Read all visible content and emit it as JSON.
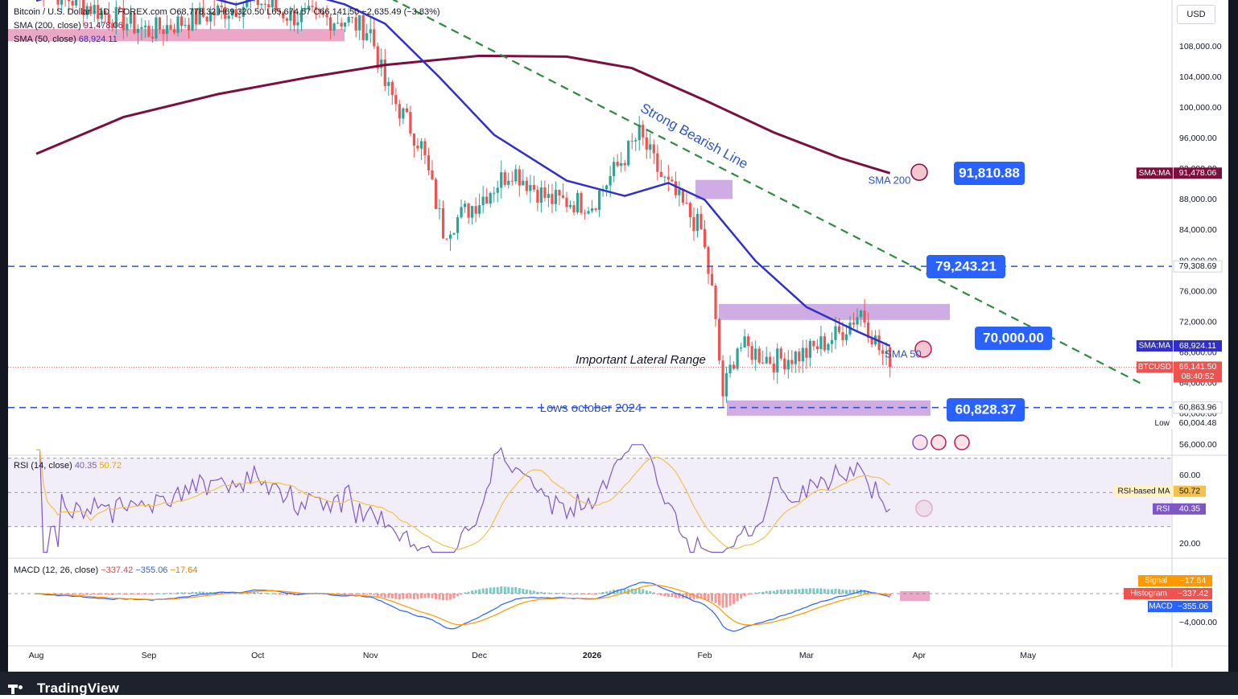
{
  "header": {
    "symbol_line": "Bitcoin / U.S. Dollar · 1D · FOREX.com  O68,778.32  H69,320.50  L65,674.57  C66,141.50  −2,635.49 (−3.83%)",
    "sma200_line_label": "SMA (200, close)",
    "sma200_line_value": "91,478.06",
    "sma50_line_label": "SMA (50, close)",
    "sma50_line_value": "68,924.11",
    "currency": "USD"
  },
  "annotations": {
    "bearish_line": "Strong Bearish Line",
    "sma200_tag": "SMA 200",
    "sma50_tag": "SMA 50",
    "lateral_range": "Important Lateral Range",
    "lows_october": "Lows october 2024",
    "callout_sma200": "91,810.88",
    "callout_resistance": "79,243.21",
    "callout_70k": "70,000.00",
    "callout_lows": "60,828.37"
  },
  "price_axis": {
    "ticks": [
      "108,000.00",
      "104,000.00",
      "100,000.00",
      "96,000.00",
      "92,000.00",
      "88,000.00",
      "84,000.00",
      "80,000.00",
      "76,000.00",
      "72,000.00",
      "68,000.00",
      "64,000.00",
      "60,000.00",
      "56,000.00"
    ],
    "badges": {
      "sma200": {
        "label": "SMA:MA",
        "value": "91,478.06"
      },
      "line_79k": {
        "value": "79,308.69"
      },
      "sma50": {
        "label": "SMA:MA",
        "value": "68,924.11"
      },
      "btc": {
        "label": "BTCUSD",
        "value": "66,141.50",
        "countdown": "08:40:52"
      },
      "line_60k": {
        "value": "60,863.96"
      },
      "low": {
        "label": "Low",
        "value": "60,004.48"
      }
    }
  },
  "rsi": {
    "legend_name": "RSI (14, close)",
    "legend_rsi": "40.35",
    "legend_ma": "50.72",
    "ticks": [
      "60.00",
      "20.00"
    ],
    "badge_ma_label": "RSI-based MA",
    "badge_ma_value": "50.72",
    "badge_rsi_label": "RSI",
    "badge_rsi_value": "40.35"
  },
  "macd": {
    "legend_name": "MACD (12, 26, close)",
    "legend_hist": "−337.42",
    "legend_macd": "−355.06",
    "legend_signal": "−17.64",
    "ticks": [
      "−4,000.00"
    ],
    "badge_signal_label": "Signal",
    "badge_signal_value": "−17.64",
    "badge_hist_label": "Histogram",
    "badge_hist_value": "−337.42",
    "badge_macd_label": "MACD",
    "badge_macd_value": "−355.06"
  },
  "time_axis": [
    "Aug",
    "Sep",
    "Oct",
    "Nov",
    "Dec",
    "2026",
    "Feb",
    "Mar",
    "Apr",
    "May"
  ],
  "footer": {
    "brand": "TradingView"
  },
  "colors": {
    "up": "#26a69a",
    "down": "#ef5350",
    "sma200": "#7b1040",
    "sma50": "#3030c8",
    "bearish_line": "#2e8b3e",
    "dashed_level": "#2f55c4",
    "callout_bg": "#2962ff",
    "zone_purple": "#b57fd6",
    "zone_pink": "#e07aa8",
    "rsi_line": "#7e57c2",
    "rsi_ma": "#f2c14e",
    "macd_line": "#2962ff",
    "signal_line": "#ff9800"
  },
  "chart_data": {
    "type": "candlestick",
    "symbol": "BTCUSD",
    "timeframe": "1D",
    "ohlc_last": {
      "open": 68778.32,
      "high": 69320.5,
      "low": 65674.57,
      "close": 66141.5,
      "change": -2635.49,
      "change_pct": -3.83
    },
    "ylim": [
      54000,
      112000
    ],
    "approx_close_path": [
      {
        "date": "2025-08-01",
        "close": 116000
      },
      {
        "date": "2025-09-01",
        "close": 110000
      },
      {
        "date": "2025-10-01",
        "close": 114000
      },
      {
        "date": "2025-10-10",
        "close": 112000
      },
      {
        "date": "2025-10-25",
        "close": 111500
      },
      {
        "date": "2025-11-01",
        "close": 110000
      },
      {
        "date": "2025-11-05",
        "close": 103000
      },
      {
        "date": "2025-11-15",
        "close": 95000
      },
      {
        "date": "2025-11-21",
        "close": 84000
      },
      {
        "date": "2025-12-01",
        "close": 88000
      },
      {
        "date": "2025-12-10",
        "close": 92000
      },
      {
        "date": "2025-12-20",
        "close": 88000
      },
      {
        "date": "2026-01-01",
        "close": 87500
      },
      {
        "date": "2026-01-14",
        "close": 96500
      },
      {
        "date": "2026-01-20",
        "close": 91000
      },
      {
        "date": "2026-01-31",
        "close": 84000
      },
      {
        "date": "2026-02-03",
        "close": 76000
      },
      {
        "date": "2026-02-06",
        "close": 62500
      },
      {
        "date": "2026-02-10",
        "close": 69000
      },
      {
        "date": "2026-02-20",
        "close": 67000
      },
      {
        "date": "2026-03-01",
        "close": 68000
      },
      {
        "date": "2026-03-10",
        "close": 70500
      },
      {
        "date": "2026-03-16",
        "close": 73500
      },
      {
        "date": "2026-03-21",
        "close": 68500
      },
      {
        "date": "2026-03-24",
        "close": 66141.5
      }
    ],
    "indicators": [
      {
        "name": "SMA 200",
        "last": 91478.06
      },
      {
        "name": "SMA 50",
        "last": 68924.11
      }
    ],
    "levels": [
      79308.69,
      60863.96
    ],
    "rsi": {
      "last": 40.35,
      "ma": 50.72
    },
    "macd": {
      "macd": -355.06,
      "signal": -17.64,
      "histogram": -337.42
    }
  }
}
